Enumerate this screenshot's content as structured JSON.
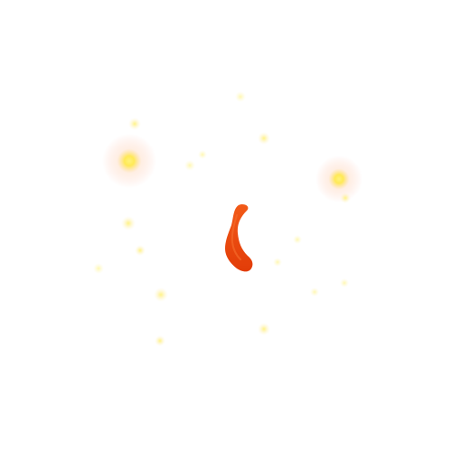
{
  "scene": {
    "background_color": "#ffffff",
    "flame_color": "#e8420c",
    "flame_highlight": "#f25a18",
    "spark_color": "#ffe84d",
    "glow_color": "#ffb3a0"
  }
}
